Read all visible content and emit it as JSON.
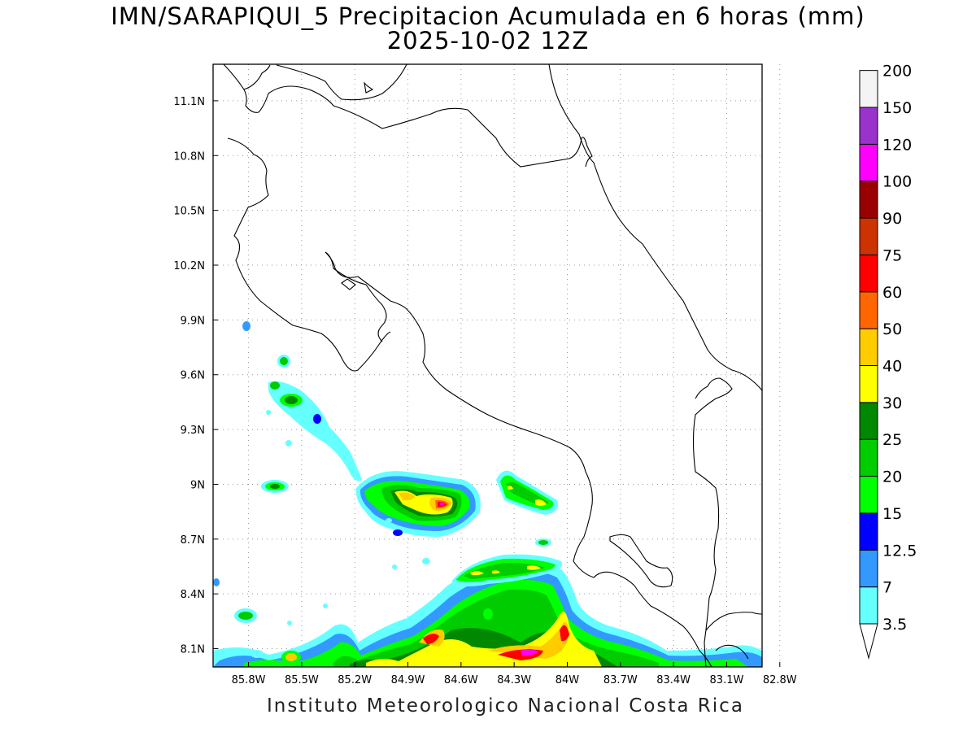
{
  "title": {
    "line1": "IMN/SARAPIQUI_5 Precipitacion Acumulada en 6 horas (mm)",
    "line2": "2025-10-02 12Z"
  },
  "footer": "Instituto Meteorologico Nacional Costa Rica",
  "map": {
    "lon_range": [
      -86.0,
      -82.9
    ],
    "lat_range": [
      8.0,
      11.3
    ],
    "lon_ticks": [
      -85.8,
      -85.5,
      -85.2,
      -84.9,
      -84.6,
      -84.3,
      -84.0,
      -83.7,
      -83.4,
      -83.1,
      -82.8
    ],
    "lat_ticks": [
      8.1,
      8.4,
      8.7,
      9.0,
      9.3,
      9.6,
      9.9,
      10.2,
      10.5,
      10.8,
      11.1
    ],
    "lon_tick_labels": [
      "85.8W",
      "85.5W",
      "85.2W",
      "84.9W",
      "84.6W",
      "84.3W",
      "84W",
      "83.7W",
      "83.4W",
      "83.1W",
      "82.8W"
    ],
    "lat_tick_labels": [
      "8.1N",
      "8.4N",
      "8.7N",
      "9N",
      "9.3N",
      "9.6N",
      "9.9N",
      "10.2N",
      "10.5N",
      "10.8N",
      "11.1N"
    ],
    "grid": true,
    "grid_style": "dotted"
  },
  "colorbar": {
    "levels": [
      "3.5",
      "7",
      "12.5",
      "15",
      "20",
      "25",
      "30",
      "40",
      "50",
      "60",
      "75",
      "90",
      "100",
      "120",
      "150",
      "200"
    ],
    "colors": [
      "#66ffff",
      "#3399ff",
      "#0000ff",
      "#00ff00",
      "#00cc00",
      "#008800",
      "#ffff00",
      "#ffcc00",
      "#ff6600",
      "#ff0000",
      "#cc3300",
      "#990000",
      "#ff00ff",
      "#9933cc",
      "#f4f4f4",
      "#999999"
    ],
    "extends": "both"
  },
  "colors": {
    "coastline": "#000000",
    "grid": "#999999",
    "frame": "#000000"
  }
}
